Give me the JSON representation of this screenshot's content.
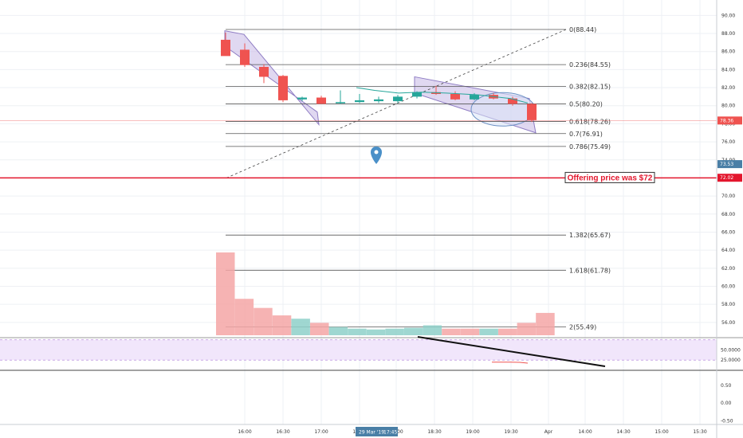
{
  "chart_data": {
    "type": "candlestick",
    "title": "",
    "date_label": "29 Mar '19",
    "time_label": "17:45",
    "offering_note": "Offering price was $72",
    "x_ticks": [
      "16:00",
      "16:30",
      "17:00",
      "17:30",
      "18:00",
      "18:30",
      "19:00",
      "19:30",
      "Apr",
      "14:00",
      "14:30",
      "15:00",
      "15:30"
    ],
    "price_ticks": [
      90,
      88,
      86,
      84,
      82,
      80,
      78,
      76,
      74,
      72,
      70,
      68,
      66,
      64,
      62,
      60,
      58,
      56
    ],
    "price_tick_labels": [
      "90.00",
      "88.00",
      "86.00",
      "84.00",
      "82.00",
      "80.00",
      "78.00",
      "76.00",
      "74.00",
      "72.00",
      "70.00",
      "68.00",
      "66.00",
      "64.00",
      "62.00",
      "60.00",
      "58.00",
      "56.00"
    ],
    "ylim": [
      54.4,
      91
    ],
    "price_tags": [
      {
        "label": "78.36",
        "value": 78.36,
        "color": "#ef5350"
      },
      {
        "label": "73.53",
        "value": 73.53,
        "color": "#4a7fa6"
      },
      {
        "label": "72.02",
        "value": 72.02,
        "color": "#e3162d"
      }
    ],
    "offering_price": 72,
    "current_price": 78.36,
    "fib": {
      "levels": [
        {
          "label": "0(88.44)",
          "value": 88.44
        },
        {
          "label": "0.236(84.55)",
          "value": 84.55
        },
        {
          "label": "0.382(82.15)",
          "value": 82.15
        },
        {
          "label": "0.5(80.20)",
          "value": 80.2
        },
        {
          "label": "0.618(78.26)",
          "value": 78.26
        },
        {
          "label": "0.7(76.91)",
          "value": 76.91
        },
        {
          "label": "0.786(75.49)",
          "value": 75.49
        },
        {
          "label": "1.382(65.67)",
          "value": 65.67
        },
        {
          "label": "1.618(61.78)",
          "value": 61.78
        },
        {
          "label": "2(55.49)",
          "value": 55.49
        }
      ],
      "trend_from": {
        "time": "15:50",
        "value": 72.0
      },
      "trend_to": {
        "time": "20:25",
        "value": 88.44
      }
    },
    "candles": [
      {
        "t": 0,
        "o": 87.3,
        "h": 88.1,
        "l": 85.6,
        "c": 85.5
      },
      {
        "t": 1,
        "o": 86.2,
        "h": 86.9,
        "l": 84.3,
        "c": 84.5
      },
      {
        "t": 2,
        "o": 84.3,
        "h": 84.6,
        "l": 82.5,
        "c": 83.2
      },
      {
        "t": 3,
        "o": 83.3,
        "h": 83.4,
        "l": 80.4,
        "c": 80.6
      },
      {
        "t": 4,
        "o": 80.7,
        "h": 81.0,
        "l": 80.5,
        "c": 80.9
      },
      {
        "t": 5,
        "o": 80.9,
        "h": 81.1,
        "l": 80.2,
        "c": 80.2
      },
      {
        "t": 6,
        "o": 80.3,
        "h": 81.7,
        "l": 80.2,
        "c": 80.4
      },
      {
        "t": 7,
        "o": 80.4,
        "h": 81.3,
        "l": 80.3,
        "c": 80.6
      },
      {
        "t": 8,
        "o": 80.5,
        "h": 81.0,
        "l": 80.3,
        "c": 80.7
      },
      {
        "t": 9,
        "o": 80.5,
        "h": 81.2,
        "l": 80.3,
        "c": 81.0
      },
      {
        "t": 10,
        "o": 81.0,
        "h": 81.6,
        "l": 80.8,
        "c": 81.5
      },
      {
        "t": 11,
        "o": 81.5,
        "h": 82.2,
        "l": 81.2,
        "c": 81.3
      },
      {
        "t": 12,
        "o": 81.3,
        "h": 81.6,
        "l": 80.6,
        "c": 80.7
      },
      {
        "t": 13,
        "o": 80.7,
        "h": 81.4,
        "l": 80.6,
        "c": 81.2
      },
      {
        "t": 14,
        "o": 81.2,
        "h": 81.4,
        "l": 80.7,
        "c": 80.8
      },
      {
        "t": 15,
        "o": 80.8,
        "h": 81.0,
        "l": 80.0,
        "c": 80.2
      },
      {
        "t": 16,
        "o": 80.2,
        "h": 80.3,
        "l": 78.2,
        "c": 78.4
      }
    ],
    "volume_profile": {
      "rows": [
        {
          "value": 100,
          "color": "#f4a6a6"
        },
        {
          "value": 44,
          "color": "#f4a6a6"
        },
        {
          "value": 33,
          "color": "#f4a6a6"
        },
        {
          "value": 24,
          "color": "#f4a6a6"
        },
        {
          "value": 20,
          "color": "#8ed0c9"
        },
        {
          "value": 15,
          "color": "#f4a6a6"
        },
        {
          "value": 10,
          "color": "#8ed0c9"
        },
        {
          "value": 8,
          "color": "#8ed0c9"
        },
        {
          "value": 7,
          "color": "#8ed0c9"
        },
        {
          "value": 8,
          "color": "#8ed0c9"
        },
        {
          "value": 9,
          "color": "#8ed0c9"
        },
        {
          "value": 12,
          "color": "#8ed0c9"
        },
        {
          "value": 8,
          "color": "#f4a6a6"
        },
        {
          "value": 8,
          "color": "#f4a6a6"
        },
        {
          "value": 8,
          "color": "#8ed0c9"
        },
        {
          "value": 8,
          "color": "#f4a6a6"
        },
        {
          "value": 15,
          "color": "#f4a6a6"
        },
        {
          "value": 27,
          "color": "#f4a6a6"
        }
      ]
    },
    "rsi": {
      "ticks": [
        50,
        25
      ],
      "tick_labels": [
        "50.0000",
        "25.0000"
      ],
      "band": [
        25,
        75
      ],
      "ylim": [
        0,
        80
      ]
    },
    "macd": {
      "ticks": [
        0.5,
        0,
        -0.5
      ],
      "tick_labels": [
        "0.50",
        "0.00",
        "-0.50"
      ],
      "ylim": [
        -0.6,
        0.9
      ]
    },
    "colors": {
      "up": "#26a69a",
      "down": "#ef5350",
      "channel_fill": "#c7b8e6",
      "channel_stroke": "#8e7cc3",
      "offering_line": "#e3162d",
      "fib_line": "#555555"
    }
  }
}
